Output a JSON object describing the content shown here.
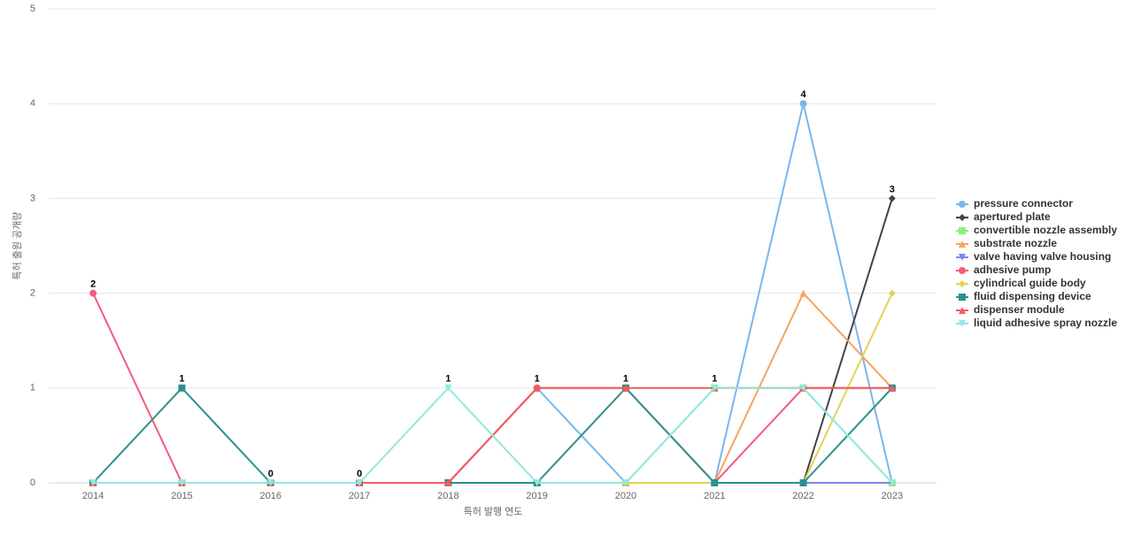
{
  "chart_data": {
    "type": "line",
    "x_label": "특허 발행 연도",
    "y_label": "특허 출원 공개량",
    "categories": [
      "2014",
      "2015",
      "2016",
      "2017",
      "2018",
      "2019",
      "2020",
      "2021",
      "2022",
      "2023"
    ],
    "ylim": [
      0,
      5
    ],
    "yticks": [
      0,
      1,
      2,
      3,
      4,
      5
    ],
    "grid": true,
    "legend": "right",
    "series": [
      {
        "name": "pressure connector",
        "color": "#7cb5ec",
        "values": [
          0,
          0,
          0,
          0,
          0,
          1,
          0,
          0,
          4,
          0
        ]
      },
      {
        "name": "apertured plate",
        "color": "#434348",
        "values": [
          0,
          0,
          0,
          0,
          0,
          0,
          0,
          0,
          0,
          3
        ]
      },
      {
        "name": "convertible nozzle assembly",
        "color": "#90ed7d",
        "values": [
          0,
          0,
          0,
          0,
          0,
          0,
          0,
          1,
          1,
          0
        ]
      },
      {
        "name": "substrate nozzle",
        "color": "#f7a35c",
        "values": [
          0,
          0,
          0,
          0,
          0,
          0,
          0,
          0,
          2,
          1
        ]
      },
      {
        "name": "valve having valve housing",
        "color": "#8085e9",
        "values": [
          0,
          0,
          0,
          0,
          0,
          0,
          0,
          0,
          0,
          0
        ]
      },
      {
        "name": "adhesive pump",
        "color": "#f15c80",
        "values": [
          2,
          0,
          0,
          0,
          0,
          1,
          1,
          0,
          1,
          1
        ]
      },
      {
        "name": "cylindrical guide body",
        "color": "#e4d354",
        "values": [
          0,
          0,
          0,
          0,
          0,
          0,
          0,
          0,
          0,
          2
        ]
      },
      {
        "name": "fluid dispensing device",
        "color": "#2b908f",
        "values": [
          0,
          1,
          0,
          0,
          0,
          0,
          1,
          0,
          0,
          1
        ]
      },
      {
        "name": "dispenser module",
        "color": "#f45b5b",
        "values": [
          0,
          0,
          0,
          0,
          0,
          1,
          1,
          1,
          1,
          1
        ]
      },
      {
        "name": "liquid adhesive spray nozzle",
        "color": "#91e8e1",
        "values": [
          0,
          0,
          0,
          0,
          1,
          0,
          0,
          1,
          1,
          0
        ]
      }
    ]
  }
}
